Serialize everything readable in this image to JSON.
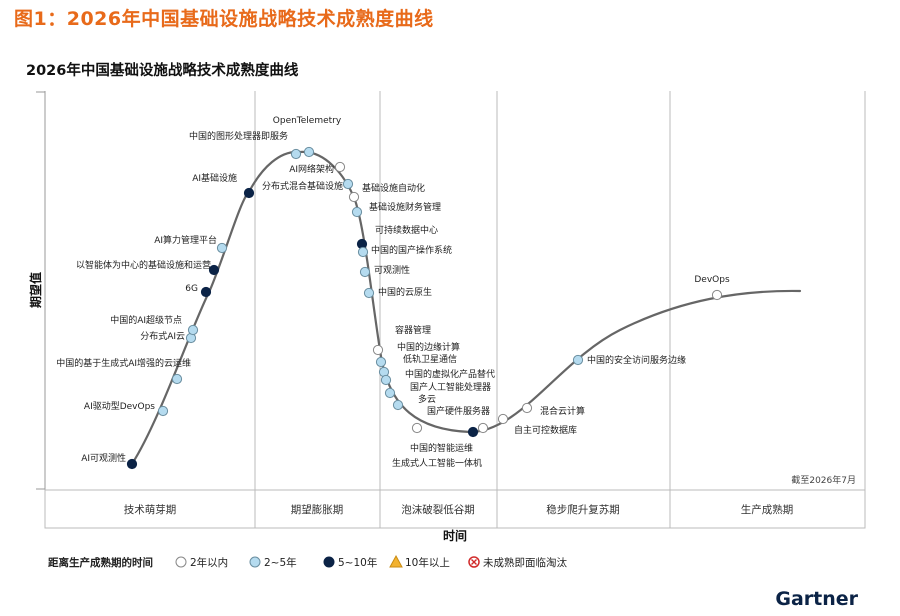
{
  "figure_caption": "图1：2026年中国基础设施战略技术成熟度曲线",
  "chart_data": {
    "type": "scatter",
    "title": "2026年中国基础设施战略技术成熟度曲线",
    "xlabel": "时间",
    "ylabel": "期望值",
    "date_note": "截至2026年7月",
    "brand": "Gartner",
    "phases": [
      "技术萌芽期",
      "期望膨胀期",
      "泡沫破裂低谷期",
      "稳步爬升复苏期",
      "生产成熟期"
    ],
    "legend_title": "距离生产成熟期的时间",
    "legend": [
      {
        "label": "2年以内",
        "key": "lt2",
        "fill": "#ffffff",
        "stroke": "#888888"
      },
      {
        "label": "2~5年",
        "key": "2to5",
        "fill": "#b5dbef",
        "stroke": "#6a8ea0"
      },
      {
        "label": "5~10年",
        "key": "5to10",
        "fill": "#0b2346",
        "stroke": "#0b2346"
      },
      {
        "label": "10年以上",
        "key": "gt10",
        "fill": "#f2b230",
        "stroke": "#c98b12"
      },
      {
        "label": "未成熟即面临淘汰",
        "key": "obsolete",
        "fill": "#ffffff",
        "stroke": "#d12a2a"
      }
    ],
    "points": [
      {
        "name": "AI可观测性",
        "cat": "5to10"
      },
      {
        "name": "AI驱动型DevOps",
        "cat": "2to5"
      },
      {
        "name": "中国的基于生成式AI增强的云运维",
        "cat": "2to5"
      },
      {
        "name": "分布式AI云",
        "cat": "2to5"
      },
      {
        "name": "中国的AI超级节点",
        "cat": "2to5"
      },
      {
        "name": "6G",
        "cat": "5to10"
      },
      {
        "name": "以智能体为中心的基础设施和运营",
        "cat": "5to10"
      },
      {
        "name": "AI算力管理平台",
        "cat": "2to5"
      },
      {
        "name": "AI基础设施",
        "cat": "5to10"
      },
      {
        "name": "中国的图形处理器即服务",
        "cat": "2to5"
      },
      {
        "name": "OpenTelemetry",
        "cat": "2to5"
      },
      {
        "name": "AI网络架构",
        "cat": "lt2"
      },
      {
        "name": "分布式混合基础设施",
        "cat": "2to5"
      },
      {
        "name": "基础设施自动化",
        "cat": "lt2"
      },
      {
        "name": "基础设施财务管理",
        "cat": "2to5"
      },
      {
        "name": "可持续数据中心",
        "cat": "5to10"
      },
      {
        "name": "中国的国产操作系统",
        "cat": "2to5"
      },
      {
        "name": "可观测性",
        "cat": "2to5"
      },
      {
        "name": "中国的云原生",
        "cat": "2to5"
      },
      {
        "name": "容器管理",
        "cat": "lt2"
      },
      {
        "name": "中国的边缘计算",
        "cat": "2to5"
      },
      {
        "name": "低轨卫星通信",
        "cat": "2to5"
      },
      {
        "name": "中国的虚拟化产品替代",
        "cat": "2to5"
      },
      {
        "name": "国产人工智能处理器",
        "cat": "2to5"
      },
      {
        "name": "多云",
        "cat": "2to5"
      },
      {
        "name": "国产硬件服务器",
        "cat": "lt2"
      },
      {
        "name": "中国的智能运维",
        "cat": "5to10"
      },
      {
        "name": "生成式人工智能一体机",
        "cat": "lt2"
      },
      {
        "name": "自主可控数据库",
        "cat": "lt2"
      },
      {
        "name": "混合云计算",
        "cat": "lt2"
      },
      {
        "name": "中国的安全访问服务边缘",
        "cat": "2to5"
      },
      {
        "name": "DevOps",
        "cat": "lt2"
      }
    ]
  }
}
